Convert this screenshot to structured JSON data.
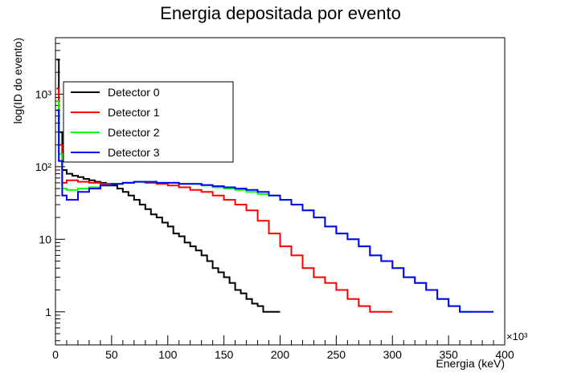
{
  "chart_data": {
    "type": "line",
    "title": "Energia depositada por evento",
    "xlabel": "Energia (keV)",
    "ylabel": "log(ID do evento)",
    "x_multiplier": "×10³",
    "xlim": [
      0,
      400
    ],
    "ylim": [
      0.35,
      6000
    ],
    "yscale": "log",
    "x_ticks": [
      "0",
      "50",
      "100",
      "150",
      "200",
      "250",
      "300",
      "350",
      "400"
    ],
    "y_ticks": [
      {
        "value": 1,
        "label": "1"
      },
      {
        "value": 10,
        "label": "10"
      },
      {
        "value": 100,
        "label": "10²"
      },
      {
        "value": 1000,
        "label": "10³"
      }
    ],
    "legend_position": "top-left",
    "series": [
      {
        "name": "Detector 0",
        "color": "#000000",
        "x": [
          1,
          3,
          6,
          10,
          15,
          20,
          25,
          30,
          35,
          40,
          45,
          50,
          55,
          60,
          65,
          70,
          75,
          80,
          85,
          90,
          95,
          100,
          105,
          110,
          115,
          120,
          125,
          130,
          135,
          140,
          145,
          150,
          155,
          160,
          165,
          170,
          175,
          180,
          185,
          190,
          195,
          200
        ],
        "y": [
          3000,
          300,
          90,
          80,
          75,
          72,
          68,
          65,
          62,
          60,
          58,
          55,
          50,
          45,
          40,
          35,
          30,
          26,
          22,
          20,
          17,
          15,
          12,
          11,
          9,
          8,
          7,
          6,
          5,
          4,
          3.5,
          3,
          2.5,
          2,
          1.8,
          1.5,
          1.3,
          1.2,
          1,
          1,
          1,
          1
        ]
      },
      {
        "name": "Detector 1",
        "color": "#ff0000",
        "x": [
          1,
          3,
          6,
          10,
          20,
          30,
          40,
          50,
          60,
          70,
          80,
          90,
          100,
          110,
          120,
          130,
          140,
          150,
          160,
          170,
          180,
          190,
          200,
          210,
          220,
          230,
          240,
          250,
          260,
          270,
          280,
          290,
          300
        ],
        "y": [
          1200,
          200,
          60,
          65,
          62,
          60,
          58,
          58,
          60,
          62,
          60,
          58,
          55,
          52,
          48,
          45,
          40,
          35,
          30,
          25,
          18,
          12,
          8,
          6,
          4,
          3,
          2.5,
          2,
          1.5,
          1.2,
          1,
          1,
          1
        ]
      },
      {
        "name": "Detector 2",
        "color": "#00ff00",
        "x": [
          1,
          3,
          6,
          10,
          20,
          30,
          40,
          50,
          60,
          70,
          80,
          90,
          100,
          110,
          120,
          130,
          140,
          150,
          160,
          170,
          180,
          190,
          200,
          210,
          220,
          230,
          240,
          250,
          260,
          270,
          280,
          290,
          300,
          310,
          320,
          330,
          340,
          350,
          360,
          370
        ],
        "y": [
          800,
          150,
          50,
          48,
          50,
          52,
          55,
          58,
          60,
          62,
          62,
          60,
          60,
          58,
          58,
          55,
          52,
          50,
          48,
          45,
          42,
          40,
          35,
          30,
          25,
          20,
          15,
          12,
          10,
          8,
          6,
          5,
          4,
          3,
          2.5,
          2,
          1.5,
          1.2,
          1,
          1
        ]
      },
      {
        "name": "Detector 3",
        "color": "#0000ff",
        "x": [
          1,
          3,
          6,
          10,
          20,
          30,
          40,
          50,
          60,
          70,
          80,
          90,
          100,
          110,
          120,
          130,
          140,
          150,
          160,
          170,
          180,
          190,
          200,
          210,
          220,
          230,
          240,
          250,
          260,
          270,
          280,
          290,
          300,
          310,
          320,
          330,
          340,
          350,
          360,
          370,
          380,
          390
        ],
        "y": [
          600,
          120,
          40,
          35,
          45,
          50,
          55,
          58,
          60,
          62,
          62,
          60,
          60,
          58,
          58,
          56,
          54,
          52,
          50,
          48,
          45,
          40,
          35,
          30,
          25,
          20,
          15,
          12,
          10,
          8,
          6,
          5,
          4,
          3,
          2.5,
          2,
          1.5,
          1.2,
          1,
          1,
          1,
          1
        ]
      }
    ]
  }
}
